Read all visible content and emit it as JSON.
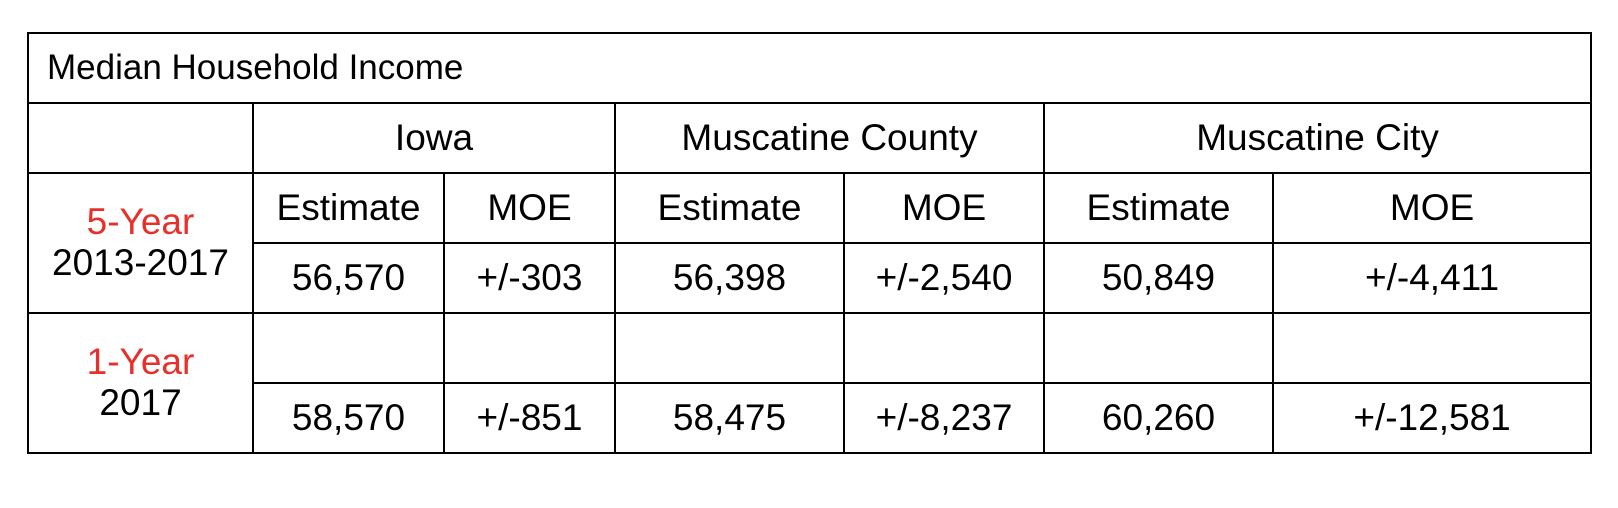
{
  "title": "Median Household Income",
  "regions": [
    "Iowa",
    "Muscatine County",
    "Muscatine City"
  ],
  "column_labels": {
    "estimate": "Estimate",
    "moe": "MOE"
  },
  "colors": {
    "period_label": "#e8302a",
    "border": "#000000",
    "text": "#000000"
  },
  "rows": [
    {
      "period_label": "5-Year",
      "period_years": "2013-2017",
      "values": [
        {
          "estimate": "56,570",
          "moe": "+/-303"
        },
        {
          "estimate": "56,398",
          "moe": "+/-2,540"
        },
        {
          "estimate": "50,849",
          "moe": "+/-4,411"
        }
      ]
    },
    {
      "period_label": "1-Year",
      "period_years": "2017",
      "values": [
        {
          "estimate": "58,570",
          "moe": "+/-851"
        },
        {
          "estimate": "58,475",
          "moe": "+/-8,237"
        },
        {
          "estimate": "60,260",
          "moe": "+/-12,581"
        }
      ]
    }
  ]
}
